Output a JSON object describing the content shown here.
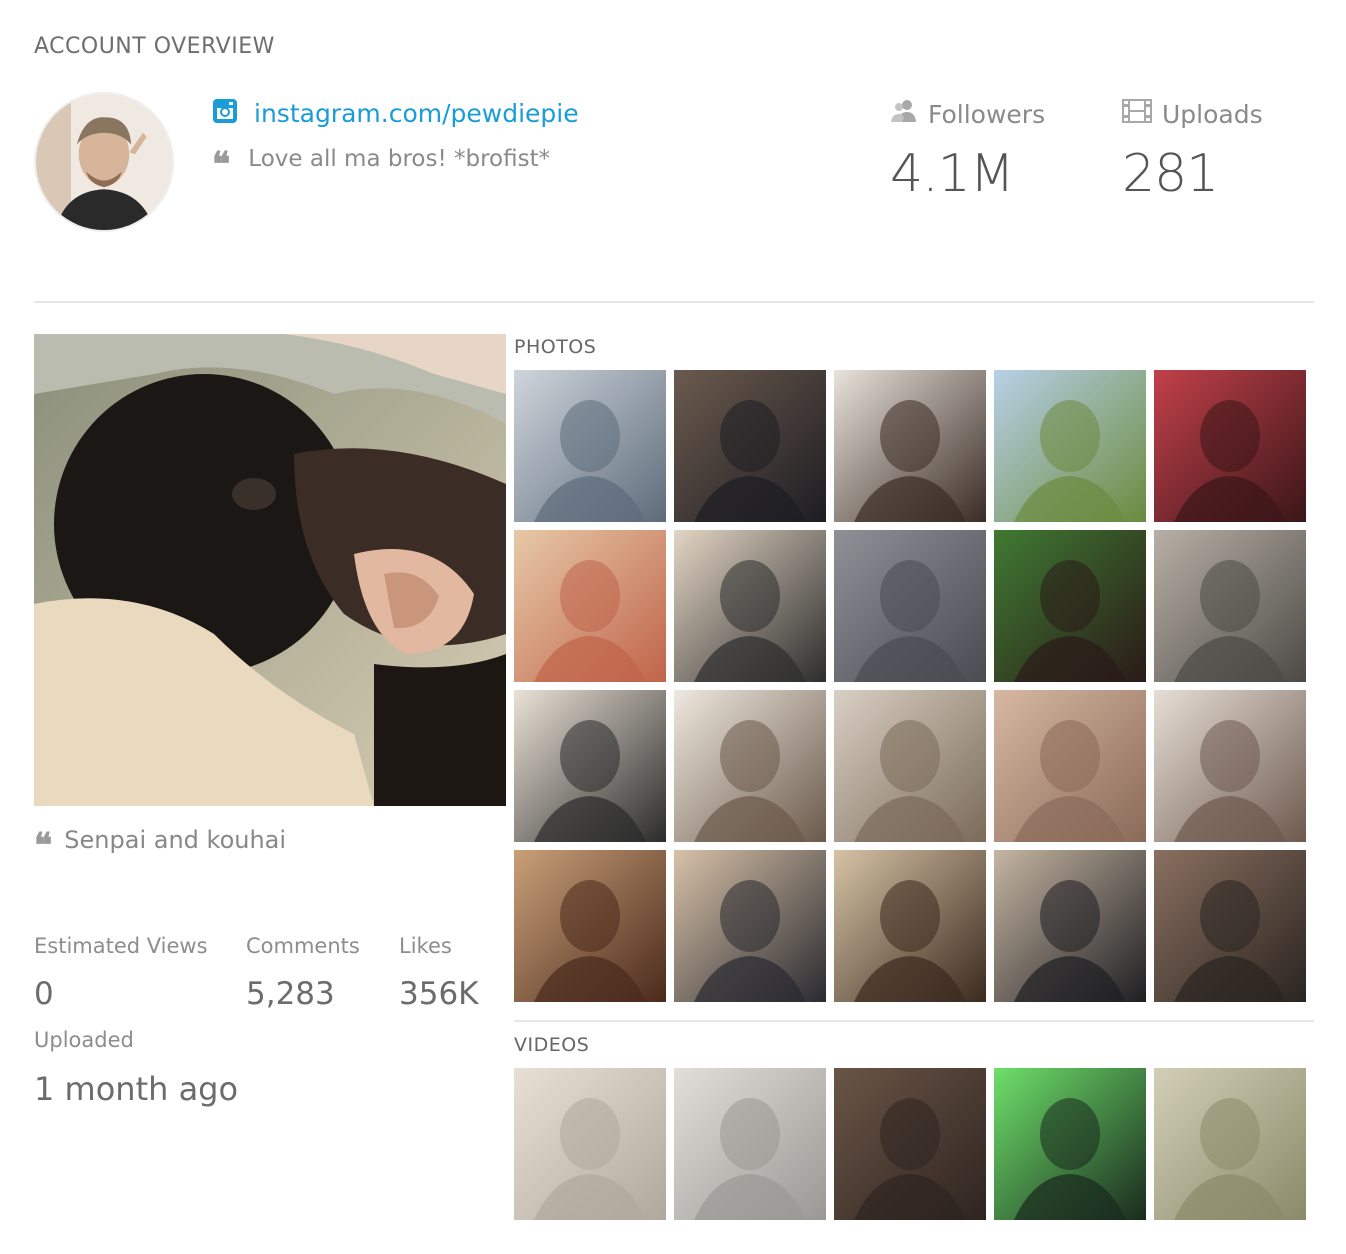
{
  "header": {
    "title": "ACCOUNT OVERVIEW"
  },
  "profile": {
    "handle": "instagram.com/pewdiepie",
    "bio": "Love all ma bros! *brofist*",
    "icons": {
      "network": "instagram-icon",
      "quote": "quote-icon"
    }
  },
  "stats": {
    "followers": {
      "label": "Followers",
      "value": "4.1M",
      "icon": "people-icon"
    },
    "uploads": {
      "label": "Uploads",
      "value": "281",
      "icon": "film-icon"
    }
  },
  "featured": {
    "caption": "Senpai and kouhai",
    "metrics": [
      {
        "label": "Estimated Views",
        "value": "0"
      },
      {
        "label": "Comments",
        "value": "5,283"
      },
      {
        "label": "Likes",
        "value": "356K"
      }
    ],
    "uploaded": {
      "label": "Uploaded",
      "value": "1 month ago"
    }
  },
  "photos": {
    "label": "PHOTOS",
    "thumbs": [
      [
        "#5d6b7a",
        "#cfd5dc"
      ],
      [
        "#1d1d22",
        "#6b5a4e"
      ],
      [
        "#3a2c24",
        "#e8e3dc"
      ],
      [
        "#6a8b3e",
        "#b8d0e8"
      ],
      [
        "#3a1618",
        "#c2404a"
      ],
      [
        "#c0644a",
        "#e6c9a7"
      ],
      [
        "#2d2d2d",
        "#e3d5c4"
      ],
      [
        "#4a4a52",
        "#8f9197"
      ],
      [
        "#2a1a18",
        "#3f7a32"
      ],
      [
        "#4c4a46",
        "#b8b0a6"
      ],
      [
        "#2b2b2b",
        "#eae2d6"
      ],
      [
        "#6b5a4c",
        "#efe8de"
      ],
      [
        "#7a6a58",
        "#d9cfc3"
      ],
      [
        "#8a6a58",
        "#d7b8a2"
      ],
      [
        "#6e5a4e",
        "#e6ded6"
      ],
      [
        "#4a2a1c",
        "#c9a078"
      ],
      [
        "#2a2a30",
        "#d8c2a8"
      ],
      [
        "#3a2a1e",
        "#d6c3a6"
      ],
      [
        "#1e1e22",
        "#c6b6a2"
      ],
      [
        "#2a2420",
        "#8a7060"
      ]
    ]
  },
  "videos": {
    "label": "VIDEOS",
    "thumbs": [
      [
        "#b0a89c",
        "#e8e0d4"
      ],
      [
        "#9a9894",
        "#e2dfda"
      ],
      [
        "#2e2420",
        "#6a5546"
      ],
      [
        "#1a2a1e",
        "#6ee06a"
      ],
      [
        "#8a8a6a",
        "#d2cfb6"
      ]
    ]
  },
  "colors": {
    "link": "#1a9cd8",
    "text": "#777777",
    "divider": "#e6e6e6"
  }
}
